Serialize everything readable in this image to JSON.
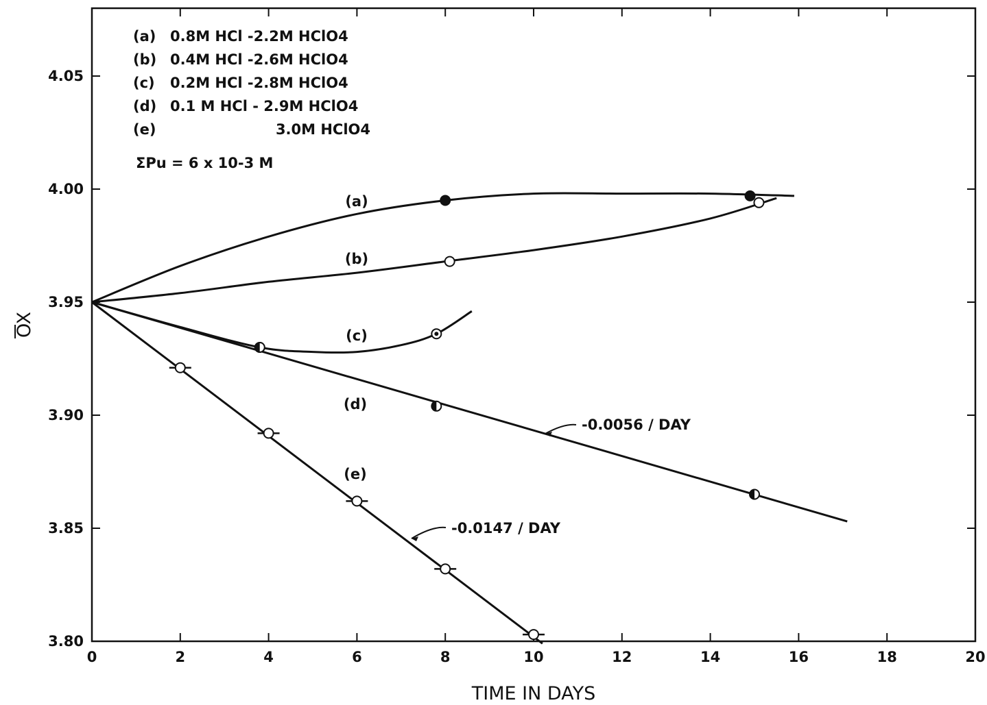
{
  "chart_data": {
    "type": "line",
    "xlabel": "TIME IN DAYS",
    "ylabel": "OX",
    "xlim": [
      0,
      20
    ],
    "ylim": [
      3.8,
      4.08
    ],
    "x_ticks": [
      "0",
      "2",
      "4",
      "6",
      "8",
      "10",
      "12",
      "14",
      "16",
      "18",
      "20"
    ],
    "y_ticks": [
      "3.80",
      "3.85",
      "3.90",
      "3.95",
      "4.00",
      "4.05"
    ],
    "legend": {
      "placement": "top-left",
      "entries": [
        {
          "id": "(a)",
          "text": "0.8M HCl -2.2M HClO4"
        },
        {
          "id": "(b)",
          "text": "0.4M HCl -2.6M HClO4"
        },
        {
          "id": "(c)",
          "text": "0.2M HCl -2.8M HClO4"
        },
        {
          "id": "(d)",
          "text": "0.1 M HCl - 2.9M HClO4"
        },
        {
          "id": "(e)",
          "text": "3.0M HClO4"
        }
      ],
      "note": "ΣPu = 6 x 10-3 M"
    },
    "series": [
      {
        "name": "(a)",
        "marker": "filled-circle",
        "points": [
          {
            "x": 8.0,
            "y": 3.995
          },
          {
            "x": 14.9,
            "y": 3.997
          }
        ],
        "curve": [
          [
            0,
            3.95
          ],
          [
            2,
            3.966
          ],
          [
            4,
            3.979
          ],
          [
            6,
            3.989
          ],
          [
            8,
            3.995
          ],
          [
            10,
            3.998
          ],
          [
            12,
            3.998
          ],
          [
            14,
            3.998
          ],
          [
            15.9,
            3.997
          ]
        ]
      },
      {
        "name": "(b)",
        "marker": "open-circle",
        "points": [
          {
            "x": 8.1,
            "y": 3.968
          },
          {
            "x": 15.1,
            "y": 3.994
          }
        ],
        "curve": [
          [
            0,
            3.95
          ],
          [
            2,
            3.954
          ],
          [
            4,
            3.959
          ],
          [
            6,
            3.963
          ],
          [
            8,
            3.968
          ],
          [
            10,
            3.973
          ],
          [
            12,
            3.979
          ],
          [
            14,
            3.987
          ],
          [
            15.5,
            3.996
          ]
        ]
      },
      {
        "name": "(c)",
        "marker": "dotted-circle",
        "points": [
          {
            "x": 3.8,
            "y": 3.93
          },
          {
            "x": 7.8,
            "y": 3.936
          }
        ],
        "curve": [
          [
            0,
            3.95
          ],
          [
            2,
            3.939
          ],
          [
            3.8,
            3.93
          ],
          [
            5,
            3.928
          ],
          [
            6,
            3.928
          ],
          [
            7,
            3.931
          ],
          [
            7.8,
            3.936
          ],
          [
            8.6,
            3.946
          ]
        ]
      },
      {
        "name": "(d)",
        "marker": "half-filled-circle",
        "points": [
          {
            "x": 3.8,
            "y": 3.93
          },
          {
            "x": 7.8,
            "y": 3.904
          },
          {
            "x": 15.0,
            "y": 3.865
          }
        ],
        "curve": [
          [
            0,
            3.95
          ],
          [
            17.1,
            3.853
          ]
        ]
      },
      {
        "name": "(e)",
        "marker": "open-circle-with-bars",
        "points": [
          {
            "x": 2.0,
            "y": 3.921
          },
          {
            "x": 4.0,
            "y": 3.892
          },
          {
            "x": 6.0,
            "y": 3.862
          },
          {
            "x": 8.0,
            "y": 3.832
          },
          {
            "x": 10.0,
            "y": 3.803
          }
        ],
        "curve": [
          [
            0,
            3.95
          ],
          [
            10.2,
            3.799
          ]
        ]
      }
    ],
    "annotations": [
      {
        "text": "-0.0056 / DAY",
        "series": "(d)"
      },
      {
        "text": "-0.0147 / DAY",
        "series": "(e)"
      }
    ],
    "curve_labels": [
      {
        "text": "(a)",
        "at": [
          6.0,
          3.995
        ]
      },
      {
        "text": "(b)",
        "at": [
          6.0,
          3.97
        ]
      },
      {
        "text": "(c)",
        "at": [
          6.0,
          3.936
        ]
      },
      {
        "text": "(d)",
        "at": [
          6.0,
          3.904
        ]
      },
      {
        "text": "(e)",
        "at": [
          6.0,
          3.873
        ]
      }
    ]
  }
}
